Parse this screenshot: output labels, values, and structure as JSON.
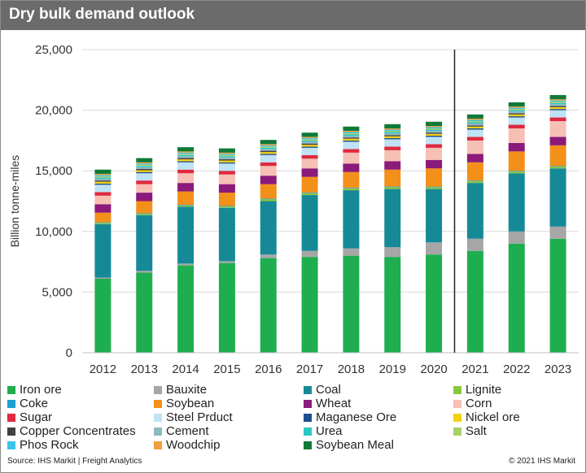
{
  "title": "Dry bulk demand outlook",
  "source": "Source: IHS Markit | Freight Analytics",
  "copyright": "© 2021 IHS Markit",
  "chart_data": {
    "type": "bar",
    "stacked": true,
    "title": "Dry bulk demand outlook",
    "xlabel": "",
    "ylabel": "Billion tonne-miles",
    "ylim": [
      0,
      25000
    ],
    "yticks": [
      0,
      5000,
      10000,
      15000,
      20000,
      25000
    ],
    "ytick_labels": [
      "0",
      "5,000",
      "10,000",
      "15,000",
      "20,000",
      "25,000"
    ],
    "grid": true,
    "forecast_divider_after": "2020",
    "legend_position": "bottom",
    "categories": [
      "2012",
      "2013",
      "2014",
      "2015",
      "2016",
      "2017",
      "2018",
      "2019",
      "2020",
      "2021",
      "2022",
      "2023"
    ],
    "series": [
      {
        "name": "Iron ore",
        "color": "#1fae4f",
        "values": [
          6100,
          6600,
          7200,
          7400,
          7800,
          7900,
          8000,
          7900,
          8100,
          8400,
          9000,
          9400
        ]
      },
      {
        "name": "Bauxite",
        "color": "#a6a6a6",
        "values": [
          100,
          150,
          150,
          150,
          300,
          500,
          600,
          800,
          1000,
          1000,
          1000,
          1000
        ]
      },
      {
        "name": "Coal",
        "color": "#158a96",
        "values": [
          4400,
          4600,
          4700,
          4400,
          4400,
          4600,
          4800,
          4800,
          4400,
          4600,
          4800,
          4800
        ]
      },
      {
        "name": "Lignite",
        "color": "#8cc63f",
        "values": [
          100,
          100,
          100,
          100,
          150,
          150,
          150,
          150,
          150,
          150,
          150,
          150
        ]
      },
      {
        "name": "Coke",
        "color": "#1a9fd4",
        "values": [
          50,
          50,
          50,
          50,
          50,
          50,
          50,
          50,
          50,
          50,
          50,
          50
        ]
      },
      {
        "name": "Soybean",
        "color": "#f39019",
        "values": [
          800,
          1000,
          1100,
          1100,
          1200,
          1300,
          1300,
          1400,
          1500,
          1500,
          1600,
          1700
        ]
      },
      {
        "name": "Wheat",
        "color": "#8b1a7a",
        "values": [
          700,
          700,
          700,
          700,
          700,
          700,
          700,
          700,
          700,
          700,
          700,
          700
        ]
      },
      {
        "name": "Corn",
        "color": "#f6c0b4",
        "values": [
          700,
          700,
          800,
          800,
          800,
          800,
          900,
          900,
          1000,
          1100,
          1200,
          1300
        ]
      },
      {
        "name": "Sugar",
        "color": "#e0293f",
        "values": [
          300,
          300,
          300,
          300,
          300,
          300,
          300,
          300,
          300,
          300,
          300,
          300
        ]
      },
      {
        "name": "Steel Prduct",
        "color": "#bfe3f5",
        "values": [
          600,
          600,
          600,
          600,
          600,
          600,
          600,
          600,
          600,
          600,
          600,
          600
        ]
      },
      {
        "name": "Maganese Ore",
        "color": "#1f4e8c",
        "values": [
          100,
          100,
          100,
          100,
          100,
          100,
          100,
          100,
          100,
          100,
          100,
          100
        ]
      },
      {
        "name": "Nickel ore",
        "color": "#f5d10f",
        "values": [
          150,
          150,
          150,
          150,
          150,
          150,
          150,
          150,
          150,
          150,
          150,
          150
        ]
      },
      {
        "name": "Copper Concentrates",
        "color": "#404040",
        "values": [
          100,
          100,
          100,
          100,
          100,
          100,
          100,
          100,
          100,
          100,
          100,
          100
        ]
      },
      {
        "name": "Cement",
        "color": "#8fb7c0",
        "values": [
          150,
          150,
          150,
          150,
          150,
          150,
          150,
          150,
          150,
          150,
          150,
          150
        ]
      },
      {
        "name": "Urea",
        "color": "#2bc7c7",
        "values": [
          100,
          100,
          100,
          100,
          100,
          100,
          100,
          100,
          100,
          100,
          100,
          100
        ]
      },
      {
        "name": "Salt",
        "color": "#a8cf6a",
        "values": [
          100,
          100,
          100,
          100,
          100,
          100,
          100,
          100,
          100,
          100,
          100,
          100
        ]
      },
      {
        "name": "Phos Rock",
        "color": "#3ec3e8",
        "values": [
          100,
          100,
          100,
          100,
          100,
          100,
          100,
          100,
          100,
          100,
          100,
          100
        ]
      },
      {
        "name": "Woodchip",
        "color": "#f0a040",
        "values": [
          100,
          100,
          100,
          100,
          100,
          100,
          100,
          100,
          100,
          100,
          100,
          100
        ]
      },
      {
        "name": "Soybean Meal",
        "color": "#0f7a38",
        "values": [
          350,
          350,
          350,
          350,
          350,
          350,
          350,
          350,
          350,
          350,
          350,
          350
        ]
      }
    ]
  }
}
